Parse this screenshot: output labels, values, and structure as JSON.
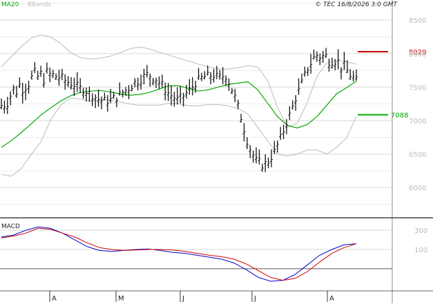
{
  "header": {
    "ma_label": "MA20",
    "bb_label": "BBands",
    "copyright": "© TEC 16/8/2026 3:0 GMT"
  },
  "macd_panel": {
    "label": "MACD"
  },
  "colors": {
    "ma20": "#00aa00",
    "bbands": "#bbbbbb",
    "price_bars": "#111111",
    "resistance": "#cc0000",
    "support": "#00aa00",
    "macd_line": "#0000cc",
    "signal_line": "#cc0000",
    "grid": "#d8d8d8",
    "axis_label": "#bbbbbb"
  },
  "chart_data": [
    {
      "type": "ohlc",
      "title": "",
      "x_ticks": [
        "A",
        "M",
        "J",
        "J",
        "A"
      ],
      "y_ticks": [
        8500,
        8000,
        7500,
        7000,
        6500,
        6000
      ],
      "ylim": [
        5550,
        8800
      ],
      "grid": true,
      "levels": [
        {
          "name": "resistance",
          "label": "8029",
          "value": 8029
        },
        {
          "name": "support",
          "label": "7088",
          "value": 7088
        }
      ],
      "series": [
        {
          "name": "MA20",
          "values": [
            6600,
            6700,
            6820,
            6950,
            7080,
            7190,
            7290,
            7370,
            7420,
            7440,
            7450,
            7430,
            7400,
            7380,
            7390,
            7420,
            7470,
            7520,
            7520,
            7480,
            7440,
            7460,
            7500,
            7540,
            7560,
            7580,
            7460,
            7260,
            7060,
            6930,
            6890,
            6940,
            7060,
            7230,
            7400,
            7490,
            7590
          ]
        },
        {
          "name": "BBands upper",
          "values": [
            7800,
            7950,
            8100,
            8230,
            8280,
            8250,
            8150,
            8020,
            7940,
            7920,
            7930,
            7960,
            8010,
            8070,
            8100,
            8070,
            8020,
            7980,
            7930,
            7890,
            7840,
            7800,
            7770,
            7770,
            7790,
            7820,
            7800,
            7600,
            7200,
            6900,
            6960,
            7260,
            7660,
            7860,
            7900,
            7880,
            7840
          ]
        },
        {
          "name": "BBands lower",
          "values": [
            6200,
            6170,
            6280,
            6490,
            6680,
            7010,
            7230,
            7340,
            7320,
            7290,
            7300,
            7310,
            7280,
            7250,
            7230,
            7230,
            7230,
            7260,
            7250,
            7220,
            7220,
            7240,
            7240,
            7220,
            7180,
            7100,
            6900,
            6700,
            6500,
            6470,
            6500,
            6560,
            6560,
            6500,
            6600,
            6740,
            7060
          ]
        }
      ]
    },
    {
      "type": "line",
      "title": "",
      "y_ticks": [
        300,
        100
      ],
      "ylim": [
        -330,
        430
      ],
      "grid": true,
      "series": [
        {
          "name": "MACD",
          "values": [
            230,
            250,
            300,
            335,
            320,
            270,
            200,
            130,
            90,
            80,
            90,
            100,
            105,
            90,
            70,
            60,
            40,
            20,
            0,
            -40,
            -110,
            -190,
            -230,
            -220,
            -160,
            -60,
            40,
            100,
            150,
            160
          ]
        },
        {
          "name": "Signal",
          "values": [
            220,
            240,
            270,
            320,
            310,
            270,
            230,
            170,
            120,
            100,
            90,
            95,
            100,
            100,
            95,
            80,
            60,
            40,
            25,
            0,
            -50,
            -120,
            -190,
            -220,
            -200,
            -130,
            -30,
            60,
            120,
            160
          ]
        }
      ]
    }
  ]
}
